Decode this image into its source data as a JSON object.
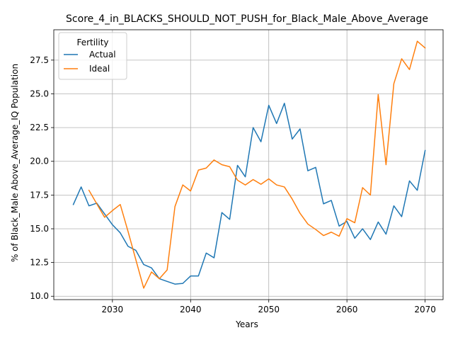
{
  "chart_data": {
    "type": "line",
    "title": "Score_4_in_BLACKS_SHOULD_NOT_PUSH_for_Black_Male_Above_Average",
    "xlabel": "Years",
    "ylabel": "% of Black_Male Above_Average_IQ Population",
    "xlim": [
      2022.5,
      2072.3
    ],
    "ylim": [
      9.75,
      29.75
    ],
    "xticks": [
      2030,
      2040,
      2050,
      2060,
      2070
    ],
    "yticks": [
      10.0,
      12.5,
      15.0,
      17.5,
      20.0,
      22.5,
      25.0,
      27.5
    ],
    "ytick_labels": [
      "10.0",
      "12.5",
      "15.0",
      "17.5",
      "20.0",
      "22.5",
      "25.0",
      "27.5"
    ],
    "grid": true,
    "legend": {
      "title": "Fertility",
      "placement": "top-left"
    },
    "series": [
      {
        "name": "Actual",
        "color": "#1f77b4",
        "x": [
          2025,
          2026,
          2027,
          2028,
          2029,
          2030,
          2031,
          2032,
          2033,
          2034,
          2035,
          2036,
          2037,
          2038,
          2039,
          2040,
          2041,
          2042,
          2043,
          2044,
          2045,
          2046,
          2047,
          2048,
          2049,
          2050,
          2051,
          2052,
          2053,
          2054,
          2055,
          2056,
          2057,
          2058,
          2059,
          2060,
          2061,
          2062,
          2063,
          2064,
          2065,
          2066,
          2067,
          2068,
          2069,
          2070
        ],
        "y": [
          16.8,
          18.1,
          16.7,
          16.9,
          16.1,
          15.3,
          14.7,
          13.7,
          13.4,
          12.35,
          12.1,
          11.3,
          11.1,
          10.9,
          10.95,
          11.5,
          11.5,
          13.2,
          12.85,
          16.2,
          15.7,
          19.7,
          18.85,
          22.5,
          21.45,
          24.15,
          22.8,
          24.3,
          21.65,
          22.4,
          19.3,
          19.55,
          16.85,
          17.1,
          15.2,
          15.55,
          14.3,
          15.0,
          14.2,
          15.5,
          14.6,
          16.7,
          15.9,
          18.55,
          17.85,
          20.8
        ]
      },
      {
        "name": "Ideal",
        "color": "#ff7f0e",
        "x": [
          2027,
          2028,
          2029,
          2030,
          2031,
          2032,
          2033,
          2034,
          2035,
          2036,
          2037,
          2038,
          2039,
          2040,
          2041,
          2042,
          2043,
          2044,
          2045,
          2046,
          2047,
          2048,
          2049,
          2050,
          2051,
          2052,
          2053,
          2054,
          2055,
          2056,
          2057,
          2058,
          2059,
          2060,
          2061,
          2062,
          2063,
          2064,
          2065,
          2066,
          2067,
          2068,
          2069,
          2070
        ],
        "y": [
          17.85,
          16.85,
          15.85,
          16.35,
          16.8,
          14.8,
          12.7,
          10.6,
          11.8,
          11.3,
          11.95,
          16.65,
          18.25,
          17.8,
          19.35,
          19.5,
          20.1,
          19.75,
          19.6,
          18.6,
          18.25,
          18.65,
          18.3,
          18.7,
          18.25,
          18.1,
          17.2,
          16.15,
          15.35,
          14.95,
          14.5,
          14.75,
          14.45,
          15.75,
          15.45,
          18.05,
          17.5,
          24.95,
          19.75,
          25.75,
          27.6,
          26.8,
          28.9,
          28.4
        ]
      }
    ]
  }
}
